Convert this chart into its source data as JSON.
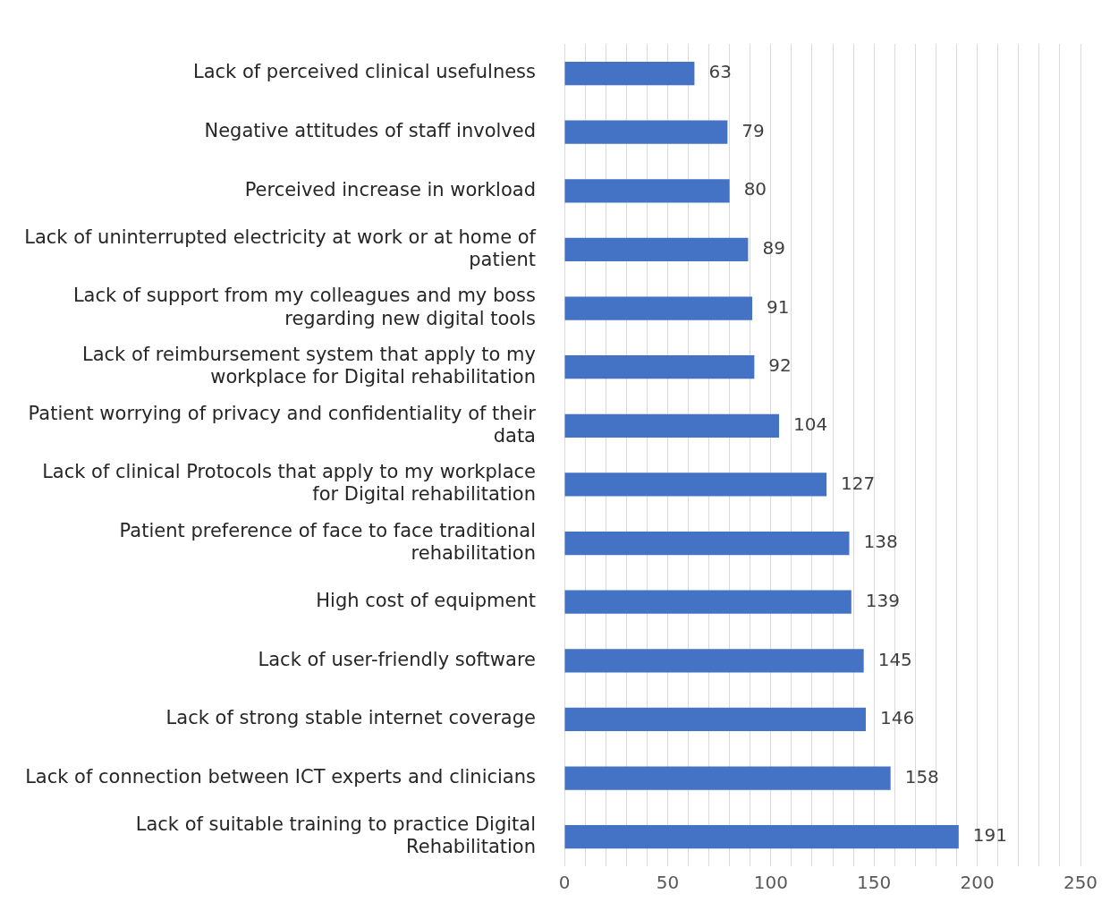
{
  "chart_data": {
    "type": "bar",
    "orientation": "horizontal",
    "categories": [
      "Lack of perceived clinical usefulness",
      "Negative attitudes of staff involved",
      "Perceived increase in workload",
      "Lack of uninterrupted electricity at work or at home of patient",
      "Lack of support from my colleagues and my boss regarding new digital tools",
      "Lack of reimbursement system that apply to my workplace for Digital rehabilitation",
      "Patient worrying of privacy and confidentiality of their data",
      "Lack of clinical Protocols that apply to my workplace for Digital rehabilitation",
      "Patient preference of face to face traditional rehabilitation",
      "High cost of equipment",
      "Lack of user-friendly software",
      "Lack of strong stable internet coverage",
      "Lack of connection between ICT experts and clinicians",
      "Lack of suitable training to practice Digital Rehabilitation"
    ],
    "values": [
      63,
      79,
      80,
      89,
      91,
      92,
      104,
      127,
      138,
      139,
      145,
      146,
      158,
      191
    ],
    "color": "#4472c4",
    "xlim": [
      0,
      250
    ],
    "xticks": [
      0,
      {
        "value": 10,
        "label": null
      },
      {
        "value": 20,
        "label": null
      },
      {
        "value": 30,
        "label": null
      },
      {
        "value": 40,
        "label": null
      },
      50,
      {
        "value": 60,
        "label": null
      },
      {
        "value": 70,
        "label": null
      },
      {
        "value": 80,
        "label": null
      },
      {
        "value": 90,
        "label": null
      },
      100,
      {
        "value": 110,
        "label": null
      },
      {
        "value": 120,
        "label": null
      },
      {
        "value": 130,
        "label": null
      },
      {
        "value": 140,
        "label": null
      },
      150,
      {
        "value": 160,
        "label": null
      },
      {
        "value": 170,
        "label": null
      },
      {
        "value": 180,
        "label": null
      },
      {
        "value": 190,
        "label": null
      },
      200,
      {
        "value": 210,
        "label": null
      },
      {
        "value": 220,
        "label": null
      },
      {
        "value": 230,
        "label": null
      },
      {
        "value": 240,
        "label": null
      },
      250
    ],
    "grid": "x",
    "legend": false,
    "data_labels": true
  }
}
